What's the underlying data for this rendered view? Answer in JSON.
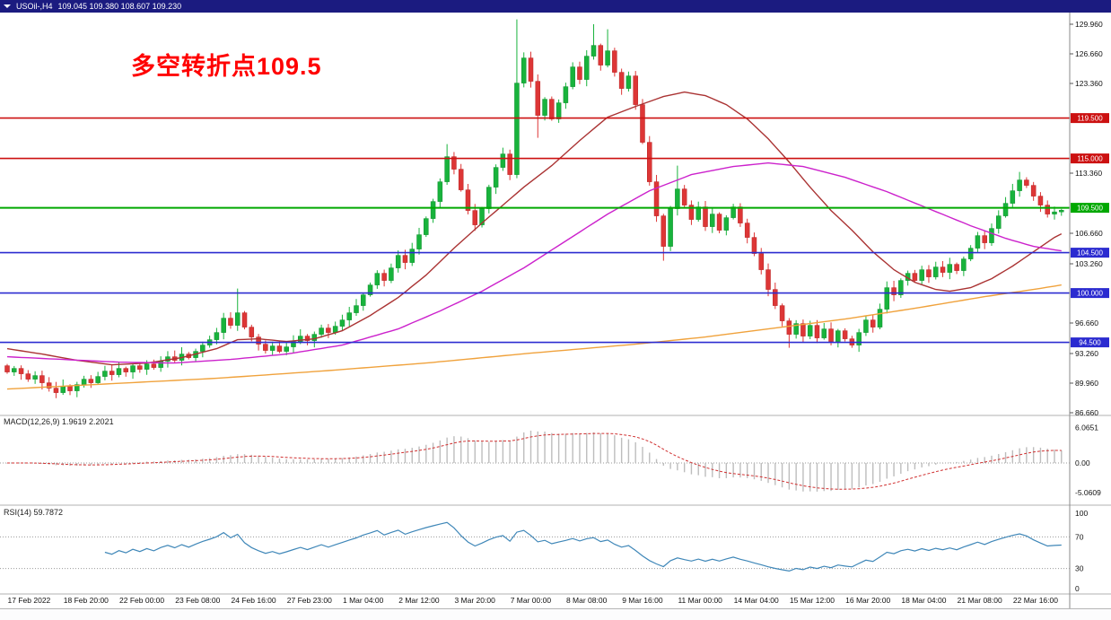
{
  "title_bar": {
    "symbol": "USOil-,H4",
    "ohlc": "109.045 109.380 108.607 109.230"
  },
  "annotation": {
    "text": "多空转折点109.5"
  },
  "colors": {
    "bull": "#18b33c",
    "bull_stroke": "#0d8f2c",
    "bear": "#dd3636",
    "bear_stroke": "#b82222",
    "ma_fast": "#aa3333",
    "ma_mid": "#cc22cc",
    "ma_slow": "#f0a23c",
    "macd_hist": "#bdbdbd",
    "macd_signal": "#d03030",
    "rsi": "#3f87b8",
    "level_red": "#cc1111",
    "level_green": "#00a800",
    "level_blue": "#2b2bd0",
    "topbar_bg": "#1b1b80",
    "axis_text": "#111111"
  },
  "price_axis": {
    "ticks": [
      {
        "label": "129.960",
        "price": 129.96
      },
      {
        "label": "126.660",
        "price": 126.66
      },
      {
        "label": "123.360",
        "price": 123.36
      },
      {
        "label": "113.360",
        "price": 113.36
      },
      {
        "label": "106.660",
        "price": 106.66
      },
      {
        "label": "103.260",
        "price": 103.26
      },
      {
        "label": "96.660",
        "price": 96.66
      },
      {
        "label": "93.260",
        "price": 93.26
      },
      {
        "label": "89.960",
        "price": 89.96
      },
      {
        "label": "86.660",
        "price": 86.66
      }
    ]
  },
  "levels": [
    {
      "label": "119.500",
      "price": 119.5,
      "color_key": "level_red"
    },
    {
      "label": "115.000",
      "price": 115.0,
      "color_key": "level_red"
    },
    {
      "label": "109.500",
      "price": 109.5,
      "color_key": "level_green"
    },
    {
      "label": "104.500",
      "price": 104.5,
      "color_key": "level_blue"
    },
    {
      "label": "100.000",
      "price": 100.0,
      "color_key": "level_blue"
    },
    {
      "label": "94.500",
      "price": 94.5,
      "color_key": "level_blue"
    }
  ],
  "chart_data": {
    "type": "candlestick",
    "symbol": "USOil",
    "timeframe": "H4",
    "first_open": 91.9,
    "closes": [
      91.2,
      91.6,
      91.0,
      90.4,
      90.8,
      90.0,
      89.4,
      88.9,
      89.6,
      89.1,
      89.8,
      90.4,
      90.0,
      90.7,
      91.3,
      90.9,
      91.6,
      91.2,
      91.9,
      91.5,
      92.1,
      91.7,
      92.4,
      92.9,
      92.5,
      93.2,
      92.8,
      93.5,
      94.2,
      94.8,
      95.6,
      97.2,
      96.4,
      97.8,
      96.2,
      95.1,
      94.3,
      93.6,
      94.1,
      93.5,
      94.0,
      94.6,
      95.2,
      94.7,
      95.4,
      96.1,
      95.6,
      96.3,
      97.0,
      97.8,
      98.6,
      99.8,
      100.9,
      102.2,
      101.4,
      102.8,
      104.2,
      103.4,
      104.9,
      106.5,
      108.3,
      110.2,
      112.4,
      115.2,
      113.8,
      111.5,
      109.2,
      107.6,
      109.4,
      111.8,
      114.0,
      115.5,
      113.2,
      123.4,
      126.2,
      123.6,
      119.8,
      121.6,
      119.4,
      121.2,
      123.0,
      125.2,
      123.8,
      126.4,
      127.6,
      125.4,
      127.0,
      124.6,
      122.8,
      124.2,
      121.0,
      116.8,
      112.4,
      108.6,
      105.2,
      109.4,
      111.6,
      109.8,
      108.2,
      109.6,
      107.4,
      108.8,
      107.0,
      108.4,
      109.6,
      107.8,
      106.2,
      104.4,
      102.6,
      100.4,
      98.6,
      96.9,
      95.4,
      96.6,
      95.2,
      96.4,
      95.0,
      96.0,
      94.6,
      95.8,
      94.9,
      94.2,
      95.6,
      97.0,
      96.2,
      98.2,
      100.6,
      99.8,
      101.4,
      102.2,
      101.4,
      102.6,
      101.8,
      102.9,
      102.3,
      103.2,
      102.5,
      103.8,
      105.0,
      106.4,
      105.6,
      107.2,
      108.6,
      110.0,
      111.4,
      112.6,
      112.0,
      110.8,
      109.8,
      108.8,
      109.045,
      109.23
    ],
    "wick_overrides": {
      "33": [
        100.5,
        null
      ],
      "63": [
        116.6,
        null
      ],
      "71": [
        116.2,
        null
      ],
      "73": [
        130.5,
        112.8
      ],
      "76": [
        null,
        117.3
      ],
      "84": [
        129.96,
        null
      ],
      "86": [
        129.4,
        null
      ],
      "94": [
        null,
        103.6
      ],
      "96": [
        114.2,
        null
      ],
      "112": [
        null,
        93.9
      ],
      "121": [
        null,
        93.9
      ],
      "145": [
        113.5,
        null
      ],
      "151": [
        109.38,
        108.607
      ]
    },
    "ma_lines": [
      {
        "name": "ma-fast-red",
        "color_key": "ma_fast",
        "points": [
          [
            0,
            93.8
          ],
          [
            5,
            93.2
          ],
          [
            10,
            92.5
          ],
          [
            15,
            92.0
          ],
          [
            20,
            92.2
          ],
          [
            25,
            92.8
          ],
          [
            30,
            93.8
          ],
          [
            33,
            94.8
          ],
          [
            36,
            94.9
          ],
          [
            40,
            94.6
          ],
          [
            44,
            94.9
          ],
          [
            48,
            95.8
          ],
          [
            52,
            97.5
          ],
          [
            56,
            99.5
          ],
          [
            60,
            102.0
          ],
          [
            64,
            105.0
          ],
          [
            68,
            107.8
          ],
          [
            71,
            109.8
          ],
          [
            74,
            111.8
          ],
          [
            78,
            114.2
          ],
          [
            82,
            117.0
          ],
          [
            86,
            119.6
          ],
          [
            90,
            120.8
          ],
          [
            94,
            121.9
          ],
          [
            97,
            122.4
          ],
          [
            100,
            122.0
          ],
          [
            103,
            121.0
          ],
          [
            106,
            119.4
          ],
          [
            109,
            117.2
          ],
          [
            112,
            114.6
          ],
          [
            115,
            111.8
          ],
          [
            118,
            109.2
          ],
          [
            121,
            107.0
          ],
          [
            124,
            104.6
          ],
          [
            127,
            102.6
          ],
          [
            130,
            101.2
          ],
          [
            133,
            100.4
          ],
          [
            135,
            100.2
          ],
          [
            138,
            100.6
          ],
          [
            141,
            101.6
          ],
          [
            144,
            103.0
          ],
          [
            147,
            104.6
          ],
          [
            150,
            106.2
          ],
          [
            151,
            106.6
          ]
        ]
      },
      {
        "name": "ma-mid-magenta",
        "color_key": "ma_mid",
        "points": [
          [
            0,
            92.9
          ],
          [
            8,
            92.6
          ],
          [
            16,
            92.3
          ],
          [
            24,
            92.2
          ],
          [
            32,
            92.6
          ],
          [
            40,
            93.2
          ],
          [
            48,
            94.2
          ],
          [
            56,
            96.0
          ],
          [
            62,
            98.0
          ],
          [
            68,
            100.2
          ],
          [
            74,
            102.8
          ],
          [
            80,
            105.8
          ],
          [
            86,
            108.8
          ],
          [
            92,
            111.4
          ],
          [
            98,
            113.2
          ],
          [
            104,
            114.1
          ],
          [
            109,
            114.5
          ],
          [
            114,
            114.1
          ],
          [
            120,
            112.9
          ],
          [
            126,
            111.3
          ],
          [
            132,
            109.4
          ],
          [
            138,
            107.5
          ],
          [
            143,
            106.1
          ],
          [
            147,
            105.2
          ],
          [
            151,
            104.7
          ]
        ]
      },
      {
        "name": "ma-slow-orange",
        "color_key": "ma_slow",
        "points": [
          [
            0,
            89.3
          ],
          [
            15,
            89.9
          ],
          [
            30,
            90.5
          ],
          [
            45,
            91.3
          ],
          [
            60,
            92.2
          ],
          [
            75,
            93.3
          ],
          [
            90,
            94.3
          ],
          [
            100,
            95.1
          ],
          [
            110,
            96.1
          ],
          [
            120,
            97.1
          ],
          [
            130,
            98.3
          ],
          [
            140,
            99.6
          ],
          [
            147,
            100.4
          ],
          [
            151,
            100.9
          ]
        ]
      }
    ],
    "x_labels": [
      "17 Feb 2022",
      "18 Feb 20:00",
      "22 Feb 00:00",
      "23 Feb 08:00",
      "24 Feb 16:00",
      "27 Feb 23:00",
      "1 Mar 04:00",
      "2 Mar 12:00",
      "3 Mar 20:00",
      "7 Mar 00:00",
      "8 Mar 08:00",
      "9 Mar 16:00",
      "11 Mar 00:00",
      "14 Mar 04:00",
      "15 Mar 12:00",
      "16 Mar 20:00",
      "18 Mar 04:00",
      "21 Mar 08:00",
      "22 Mar 16:00"
    ],
    "indicators": {
      "macd": {
        "label": "MACD(12,26,9) 1.9619 2.2021",
        "fast": 12,
        "slow": 26,
        "signal": 9,
        "ticks": [
          {
            "label": "6.0651",
            "value": 6.0651
          },
          {
            "label": "0.00",
            "value": 0
          },
          {
            "label": "-5.0609",
            "value": -5.0609
          }
        ]
      },
      "rsi": {
        "label": "RSI(14) 59.7872",
        "period": 14,
        "levels": [
          70,
          30
        ],
        "ticks": [
          {
            "label": "100",
            "value": 100
          },
          {
            "label": "70",
            "value": 70
          },
          {
            "label": "30",
            "value": 30
          },
          {
            "label": "0",
            "value": 0
          }
        ]
      }
    }
  }
}
